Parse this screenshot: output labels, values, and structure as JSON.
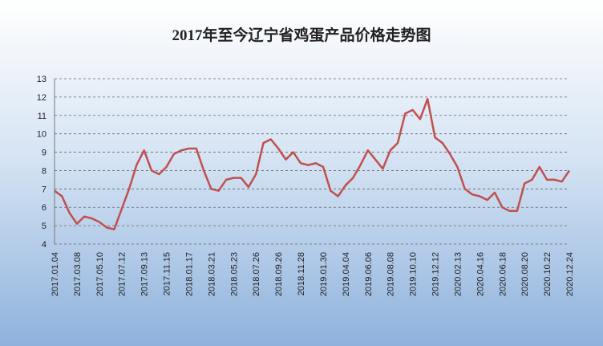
{
  "chart_data": {
    "type": "line",
    "title": "2017年至今辽宁省鸡蛋产品价格走势图",
    "categories": [
      "2017.01.04",
      null,
      null,
      "2017.03.08",
      null,
      null,
      "2017.05.10",
      null,
      null,
      "2017.07.12",
      null,
      null,
      "2017.09.13",
      null,
      null,
      "2017.11.15",
      null,
      null,
      "2018.01.17",
      null,
      null,
      "2018.03.21",
      null,
      null,
      "2018.05.23",
      null,
      null,
      "2018.07.26",
      null,
      null,
      "2018.09.26",
      null,
      null,
      "2018.11.28",
      null,
      null,
      "2019.01.30",
      null,
      null,
      "2019.04.04",
      null,
      null,
      "2019.06.06",
      null,
      null,
      "2019.08.08",
      null,
      null,
      "2019.10.10",
      null,
      null,
      "2019.12.12",
      null,
      null,
      "2020.02.13",
      null,
      null,
      "2020.04.16",
      null,
      null,
      "2020.06.18",
      null,
      null,
      "2020.08.20",
      null,
      null,
      "2020.10.22",
      null,
      null,
      "2020.12.24"
    ],
    "values": [
      6.9,
      6.6,
      5.7,
      5.1,
      5.5,
      5.4,
      5.2,
      4.9,
      4.8,
      5.9,
      7.0,
      8.3,
      9.1,
      8.0,
      7.8,
      8.2,
      8.9,
      9.1,
      9.2,
      9.2,
      8.0,
      7.0,
      6.9,
      7.5,
      7.6,
      7.6,
      7.1,
      7.8,
      9.5,
      9.7,
      9.2,
      8.6,
      9.0,
      8.4,
      8.3,
      8.4,
      8.2,
      6.9,
      6.6,
      7.2,
      7.6,
      8.3,
      9.1,
      8.6,
      8.1,
      9.1,
      9.5,
      11.1,
      11.3,
      10.8,
      11.9,
      9.8,
      9.5,
      8.9,
      8.2,
      7.0,
      6.7,
      6.6,
      6.4,
      6.8,
      6.0,
      5.8,
      5.8,
      7.3,
      7.5,
      8.2,
      7.5,
      7.5,
      7.4,
      8.0
    ],
    "color": "#c0504d",
    "ylim": [
      4,
      13
    ],
    "yticks": [
      4,
      5,
      6,
      7,
      8,
      9,
      10,
      11,
      12,
      13
    ],
    "grid": true
  }
}
